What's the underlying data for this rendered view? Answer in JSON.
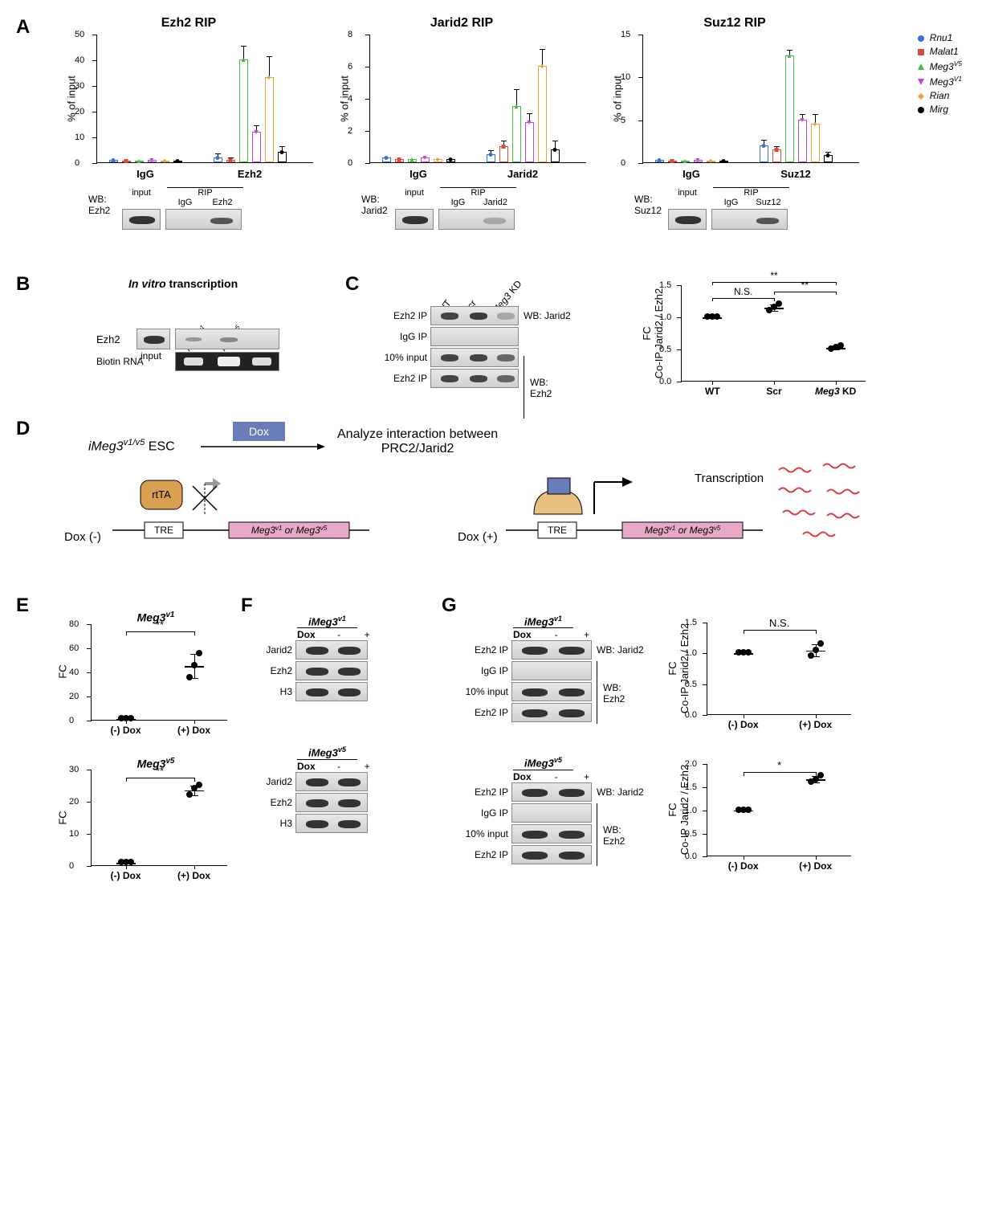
{
  "panel_labels": {
    "A": "A",
    "B": "B",
    "C": "C",
    "D": "D",
    "E": "E",
    "F": "F",
    "G": "G"
  },
  "colors": {
    "rnu1": "#3a6fd8",
    "malat1": "#d84a3a",
    "meg3v5": "#4db84a",
    "meg3v1": "#b84adb",
    "rian": "#e8a23a",
    "mirg": "#000000",
    "dox_box": "#6b7db8",
    "gene_box": "#e8a8c8",
    "rtta": "#d8a050"
  },
  "legend_items": [
    {
      "label": "Rnu1",
      "color": "#3a6fd8",
      "shape": "circle"
    },
    {
      "label": "Malat1",
      "color": "#d84a3a",
      "shape": "square"
    },
    {
      "label": "Meg3",
      "suffix": "V5",
      "color": "#4db84a",
      "shape": "triangle"
    },
    {
      "label": "Meg3",
      "suffix": "V1",
      "color": "#b84adb",
      "shape": "triangle-down"
    },
    {
      "label": "Rian",
      "color": "#e8a23a",
      "shape": "diamond"
    },
    {
      "label": "Mirg",
      "color": "#000000",
      "shape": "circle"
    }
  ],
  "panelA": {
    "charts": [
      {
        "title": "Ezh2 RIP",
        "ylabel": "% of input",
        "ylim": [
          0,
          50
        ],
        "yticks": [
          0,
          10,
          20,
          30,
          40,
          50
        ],
        "groups": [
          "IgG",
          "Ezh2"
        ],
        "igg": [
          1,
          0.5,
          0.5,
          1,
          0.5,
          0.5
        ],
        "ip": [
          2,
          1,
          40,
          12,
          33,
          4
        ],
        "err": [
          1,
          0.5,
          5,
          2,
          8,
          2
        ],
        "wb_label": "WB:\nEzh2",
        "lanes": [
          "input",
          "IgG",
          "Ezh2"
        ]
      },
      {
        "title": "Jarid2 RIP",
        "ylabel": "% of input",
        "ylim": [
          0,
          8
        ],
        "yticks": [
          0,
          2,
          4,
          6,
          8
        ],
        "groups": [
          "IgG",
          "Jarid2"
        ],
        "igg": [
          0.3,
          0.2,
          0.2,
          0.3,
          0.2,
          0.2
        ],
        "ip": [
          0.5,
          1,
          3.5,
          2.5,
          6,
          0.8
        ],
        "err": [
          0.2,
          0.3,
          1,
          0.5,
          1,
          0.5
        ],
        "wb_label": "WB:\nJarid2",
        "lanes": [
          "input",
          "IgG",
          "Jarid2"
        ]
      },
      {
        "title": "Suz12 RIP",
        "ylabel": "% of input",
        "ylim": [
          0,
          15
        ],
        "yticks": [
          0,
          5,
          10,
          15
        ],
        "groups": [
          "IgG",
          "Suz12"
        ],
        "igg": [
          0.3,
          0.2,
          0.2,
          0.3,
          0.2,
          0.2
        ],
        "ip": [
          2,
          1.5,
          12.5,
          5,
          4.5,
          0.8
        ],
        "err": [
          0.5,
          0.3,
          0.5,
          0.5,
          1,
          0.3
        ],
        "wb_label": "WB:\nSuz12",
        "lanes": [
          "input",
          "IgG",
          "Suz12"
        ]
      }
    ],
    "rip_header": "RIP"
  },
  "panelB": {
    "title": "In vitro",
    "title2": " transcription",
    "rows": [
      "Ezh2",
      "Biotin RNA"
    ],
    "lanes": [
      "input",
      "Meg3",
      "Meg3",
      "GFP"
    ],
    "lane_suffix": [
      "",
      "v1",
      "v5",
      ""
    ]
  },
  "panelC": {
    "lane_labels": [
      "WT",
      "Scr",
      "Meg3 KD"
    ],
    "rows": [
      "Ezh2 IP",
      "IgG IP",
      "10% input",
      "Ezh2 IP"
    ],
    "wb_labels": [
      "WB: Jarid2",
      "WB: Ezh2"
    ],
    "chart_ylabel": "FC\nCo-IP Jarid2 / Ezh2",
    "ylim": [
      0,
      1.5
    ],
    "yticks": [
      "0.0",
      "0.5",
      "1.0",
      "1.5"
    ],
    "xlabels": [
      "WT",
      "Scr",
      "Meg3 KD"
    ],
    "values": [
      [
        1,
        1,
        1
      ],
      [
        1.1,
        1.15,
        1.2
      ],
      [
        0.5,
        0.52,
        0.55
      ]
    ],
    "sig": [
      {
        "label": "N.S.",
        "from": 0,
        "to": 1,
        "y": 1.3
      },
      {
        "label": "**",
        "from": 1,
        "to": 2,
        "y": 1.4
      },
      {
        "label": "**",
        "from": 0,
        "to": 2,
        "y": 1.55
      }
    ]
  },
  "panelD": {
    "left_label": "iMeg3",
    "left_suffix": "v1/v5",
    "esc": " ESC",
    "dox": "Dox",
    "analyze": "Analyze interaction between\nPRC2/Jarid2",
    "dox_minus": "Dox (-)",
    "dox_plus": "Dox (+)",
    "tre": "TRE",
    "gene": "Meg3",
    "gene_suffix": "v1",
    "gene_or": " or Meg3",
    "gene_suffix2": "v5",
    "rtta": "rtTA",
    "transcription": "Transcription"
  },
  "panelE": {
    "charts": [
      {
        "title": "Meg3",
        "suffix": "v1",
        "ylabel": "FC",
        "ylim": [
          0,
          80
        ],
        "yticks": [
          0,
          20,
          40,
          60,
          80
        ],
        "xlabels": [
          "(-) Dox",
          "(+) Dox"
        ],
        "values": [
          [
            1,
            1,
            1
          ],
          [
            35,
            45,
            55
          ]
        ],
        "err": [
          0,
          15
        ],
        "sig": "**"
      },
      {
        "title": "Meg3",
        "suffix": "v5",
        "ylabel": "FC",
        "ylim": [
          0,
          30
        ],
        "yticks": [
          0,
          10,
          20,
          30
        ],
        "xlabels": [
          "(-) Dox",
          "(+) Dox"
        ],
        "values": [
          [
            1,
            1,
            1
          ],
          [
            22,
            24,
            25
          ]
        ],
        "err": [
          0,
          2
        ],
        "sig": "**"
      }
    ]
  },
  "panelF": {
    "blocks": [
      {
        "title": "iMeg3",
        "suffix": "v1",
        "dox_label": "Dox",
        "dox_vals": [
          "-",
          "+"
        ],
        "rows": [
          "Jarid2",
          "Ezh2",
          "H3"
        ]
      },
      {
        "title": "iMeg3",
        "suffix": "v5",
        "dox_label": "Dox",
        "dox_vals": [
          "-",
          "+"
        ],
        "rows": [
          "Jarid2",
          "Ezh2",
          "H3"
        ]
      }
    ]
  },
  "panelG": {
    "blocks": [
      {
        "title": "iMeg3",
        "suffix": "v1",
        "dox_label": "Dox",
        "dox_vals": [
          "-",
          "+"
        ],
        "rows": [
          "Ezh2 IP",
          "IgG IP",
          "10% input",
          "Ezh2 IP"
        ],
        "wb_labels": [
          "WB: Jarid2",
          "WB: Ezh2"
        ],
        "chart": {
          "ylabel": "FC\nCo-IP Jarid2 / Ezh2",
          "ylim": [
            0,
            1.5
          ],
          "yticks": [
            "0.0",
            "0.5",
            "1.0",
            "1.5"
          ],
          "xlabels": [
            "(-) Dox",
            "(+) Dox"
          ],
          "values": [
            [
              1,
              1,
              1
            ],
            [
              0.95,
              1.05,
              1.15
            ]
          ],
          "sig": "N.S."
        }
      },
      {
        "title": "iMeg3",
        "suffix": "v5",
        "dox_label": "Dox",
        "dox_vals": [
          "-",
          "+"
        ],
        "rows": [
          "Ezh2 IP",
          "IgG IP",
          "10% input",
          "Ezh2 IP"
        ],
        "wb_labels": [
          "WB: Jarid2",
          "WB: Ezh2"
        ],
        "chart": {
          "ylabel": "FC\nCo-IP Jarid2 / Ezh2",
          "ylim": [
            0,
            2.0
          ],
          "yticks": [
            "0.0",
            "0.5",
            "1.0",
            "1.5",
            "2.0"
          ],
          "xlabels": [
            "(-) Dox",
            "(+) Dox"
          ],
          "values": [
            [
              1,
              1,
              1
            ],
            [
              1.6,
              1.65,
              1.75
            ]
          ],
          "sig": "*"
        }
      }
    ]
  }
}
